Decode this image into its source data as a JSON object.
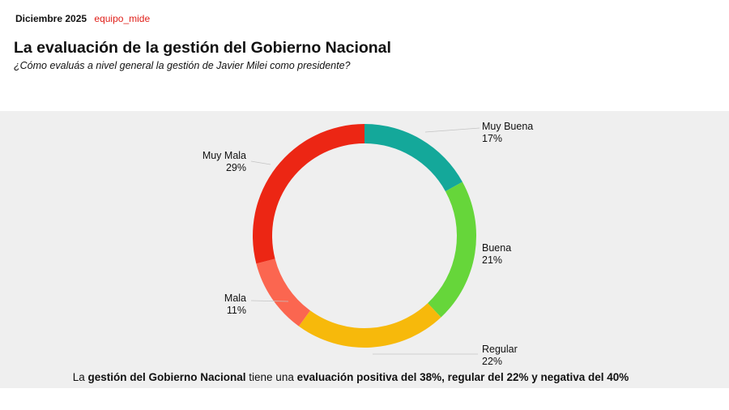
{
  "header": {
    "date": "Diciembre 2025",
    "source": "equipo_mide"
  },
  "title": "La evaluación de la gestión del Gobierno Nacional",
  "subtitle": "¿Cómo evaluás a nivel general la gestión de Javier Milei como presidente?",
  "chart_data": {
    "type": "pie",
    "donut": true,
    "title": "La evaluación de la gestión del Gobierno Nacional",
    "slices": [
      {
        "label": "Muy Buena",
        "value": 17,
        "display": "17%",
        "color": "#14a89a"
      },
      {
        "label": "Buena",
        "value": 21,
        "display": "21%",
        "color": "#66d63a"
      },
      {
        "label": "Regular",
        "value": 22,
        "display": "22%",
        "color": "#f7b90b"
      },
      {
        "label": "Mala",
        "value": 11,
        "display": "11%",
        "color": "#fb6650"
      },
      {
        "label": "Muy Mala",
        "value": 29,
        "display": "29%",
        "color": "#ec2614"
      }
    ]
  },
  "footer": {
    "p1": "La ",
    "b1": "gestión del Gobierno Nacional",
    "p2": " tiene una ",
    "b2": "evaluación positiva del 38%, regular del 22% y negativa del 40%"
  }
}
